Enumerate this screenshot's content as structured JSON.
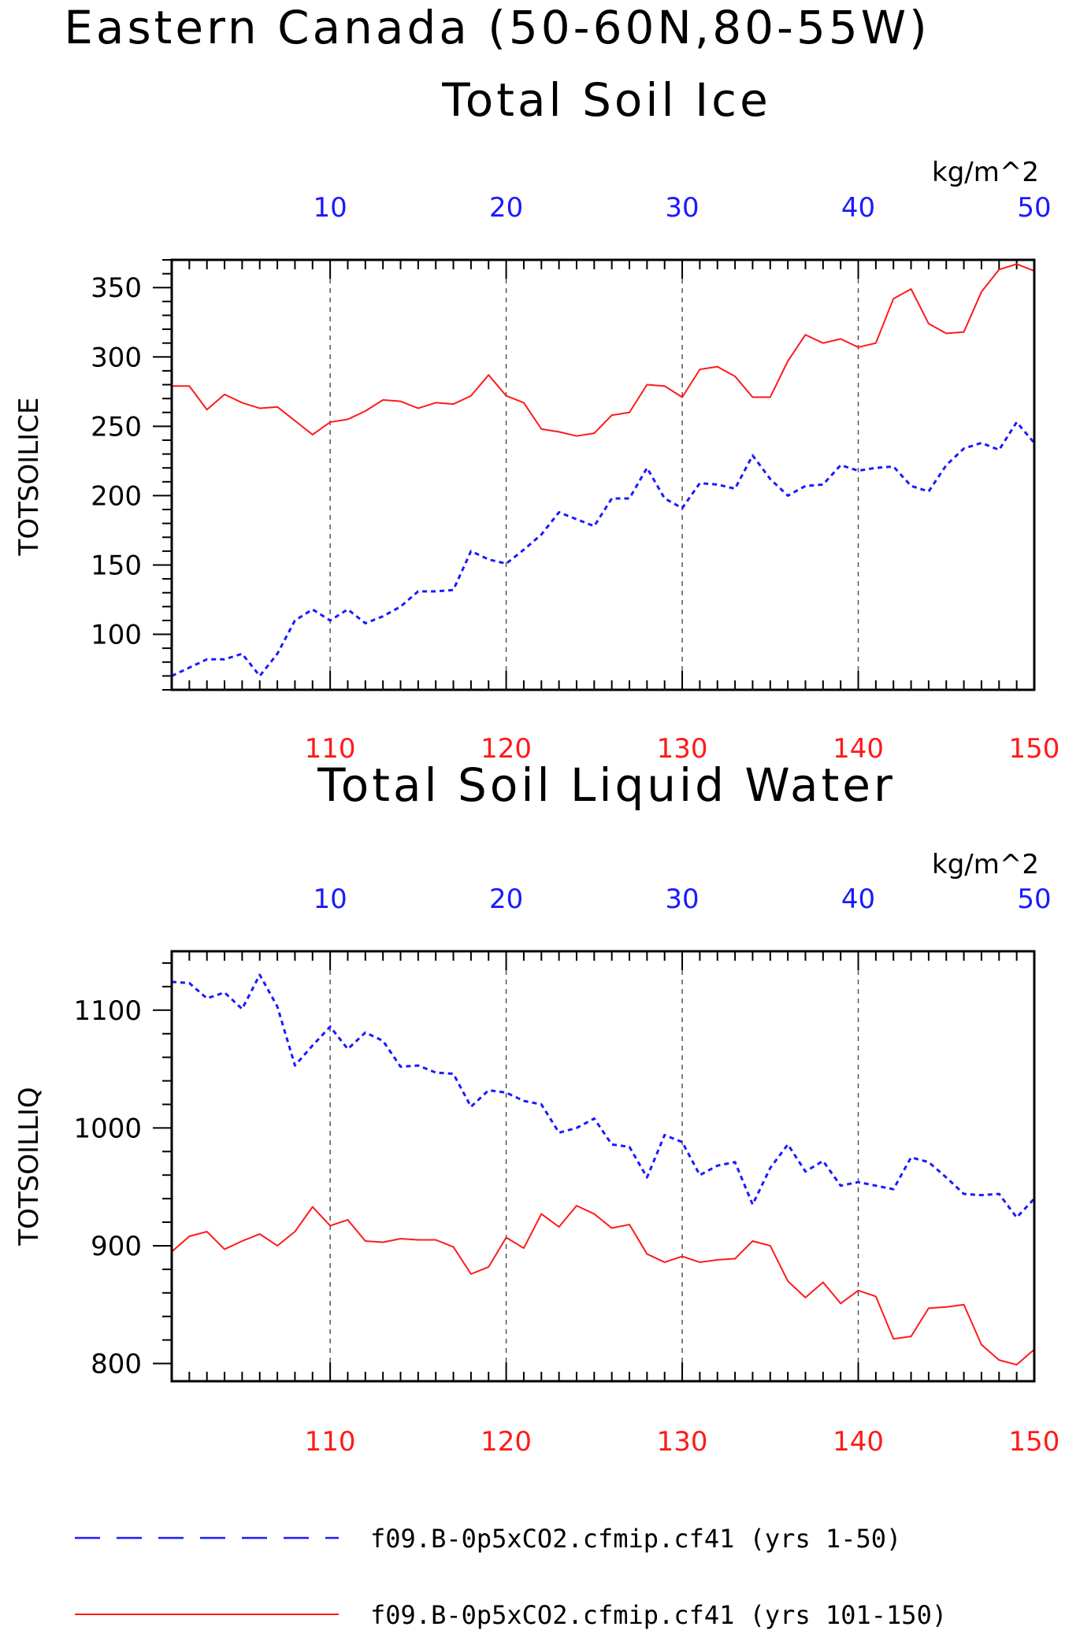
{
  "main_title": "Eastern Canada (50-60N,80-55W)",
  "colors": {
    "top_axis": "#1a1aff",
    "bottom_axis": "#ff1a1a",
    "frame": "#000000",
    "grid": "#555555"
  },
  "legend": [
    {
      "label": "f09.B-0p5xCO2.cfmip.cf41 (yrs 1-50)",
      "color": "#1a1aff",
      "style": "dashed"
    },
    {
      "label": "f09.B-0p5xCO2.cfmip.cf41 (yrs 101-150)",
      "color": "#ff1a1a",
      "style": "solid"
    }
  ],
  "chart_data": [
    {
      "type": "line",
      "title": "Total Soil Ice",
      "ylabel": "TOTSOILICE",
      "units": "kg/m^2",
      "ylim": [
        60,
        370
      ],
      "yticks": [
        100,
        150,
        200,
        250,
        300,
        350
      ],
      "x_top": {
        "range": [
          1,
          50
        ],
        "ticks": [
          10,
          20,
          30,
          40,
          50
        ]
      },
      "x_bottom": {
        "range": [
          101,
          150
        ],
        "ticks": [
          110,
          120,
          130,
          140,
          150
        ]
      },
      "grid": "vertical dashed at major ticks",
      "series": [
        {
          "axis": "top",
          "color": "#1a1aff",
          "style": "dashed",
          "values": [
            70,
            76,
            82,
            82,
            86,
            70,
            86,
            110,
            118,
            110,
            118,
            108,
            113,
            120,
            131,
            131,
            132,
            160,
            154,
            151,
            161,
            172,
            188,
            183,
            178,
            198,
            198,
            220,
            198,
            191,
            209,
            208,
            205,
            229,
            212,
            200,
            207,
            208,
            222,
            218,
            220,
            221,
            207,
            203,
            222,
            234,
            238,
            233,
            253,
            238
          ]
        },
        {
          "axis": "bottom",
          "color": "#ff1a1a",
          "style": "solid",
          "values": [
            279,
            279,
            262,
            273,
            267,
            263,
            264,
            254,
            244,
            253,
            255,
            261,
            269,
            268,
            263,
            267,
            266,
            272,
            287,
            272,
            267,
            248,
            246,
            243,
            245,
            258,
            260,
            280,
            279,
            271,
            291,
            293,
            286,
            271,
            271,
            297,
            316,
            310,
            313,
            307,
            310,
            342,
            349,
            324,
            317,
            318,
            347,
            363,
            367,
            362
          ]
        }
      ]
    },
    {
      "type": "line",
      "title": "Total Soil Liquid Water",
      "ylabel": "TOTSOILLIQ",
      "units": "kg/m^2",
      "ylim": [
        785,
        1150
      ],
      "yticks": [
        800,
        900,
        1000,
        1100
      ],
      "x_top": {
        "range": [
          1,
          50
        ],
        "ticks": [
          10,
          20,
          30,
          40,
          50
        ]
      },
      "x_bottom": {
        "range": [
          101,
          150
        ],
        "ticks": [
          110,
          120,
          130,
          140,
          150
        ]
      },
      "grid": "vertical dashed at major ticks",
      "series": [
        {
          "axis": "top",
          "color": "#1a1aff",
          "style": "dashed",
          "values": [
            1124,
            1123,
            1110,
            1115,
            1101,
            1130,
            1103,
            1053,
            1070,
            1086,
            1067,
            1081,
            1074,
            1052,
            1053,
            1047,
            1046,
            1018,
            1032,
            1030,
            1023,
            1020,
            996,
            1000,
            1008,
            986,
            984,
            958,
            994,
            988,
            960,
            968,
            971,
            935,
            966,
            986,
            963,
            972,
            951,
            954,
            951,
            948,
            975,
            971,
            958,
            944,
            943,
            944,
            924,
            940
          ]
        },
        {
          "axis": "bottom",
          "color": "#ff1a1a",
          "style": "solid",
          "values": [
            895,
            908,
            912,
            897,
            904,
            910,
            900,
            912,
            933,
            917,
            922,
            904,
            903,
            906,
            905,
            905,
            899,
            876,
            882,
            907,
            898,
            927,
            916,
            934,
            927,
            915,
            918,
            893,
            886,
            891,
            886,
            888,
            889,
            904,
            900,
            870,
            856,
            869,
            851,
            862,
            857,
            821,
            823,
            847,
            848,
            850,
            816,
            803,
            799,
            812
          ]
        }
      ]
    }
  ]
}
